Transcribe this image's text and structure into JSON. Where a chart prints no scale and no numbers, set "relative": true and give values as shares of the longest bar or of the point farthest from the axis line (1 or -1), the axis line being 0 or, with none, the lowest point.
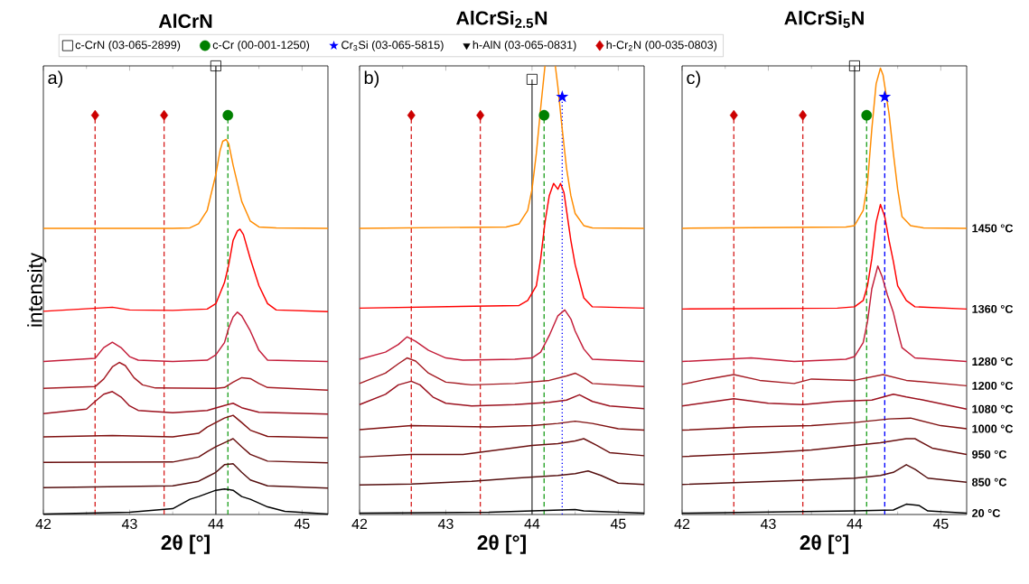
{
  "chart_data": [
    {
      "type": "line",
      "title": "AlCrN",
      "xlabel": "2θ [°]",
      "ylabel": "intensity",
      "annotations": [
        "a)"
      ],
      "relative": true,
      "xlim": [
        42,
        45.3
      ],
      "xticks": [
        42,
        43,
        44,
        45
      ],
      "legend": "top",
      "ref_lines": [
        {
          "axis": "x",
          "value": 42.6,
          "color": "#d62020",
          "line_style": "dashed"
        },
        {
          "axis": "x",
          "value": 43.4,
          "color": "#d62020",
          "line_style": "dashed"
        },
        {
          "axis": "x",
          "value": 44.0,
          "color": "#404040",
          "line_style": "solid"
        },
        {
          "axis": "x",
          "value": 44.14,
          "color": "#20a020",
          "line_style": "dashed"
        }
      ],
      "series": [
        {
          "color": "#ff8c00",
          "x": [
            42,
            43.5,
            43.7,
            43.8,
            43.9,
            44.0,
            44.05,
            44.08,
            44.12,
            44.15,
            44.2,
            44.3,
            44.4,
            44.5,
            44.7,
            45.3
          ],
          "values": [
            0.638,
            0.638,
            0.639,
            0.648,
            0.678,
            0.758,
            0.812,
            0.832,
            0.836,
            0.826,
            0.779,
            0.698,
            0.654,
            0.641,
            0.639,
            0.638
          ]
        },
        {
          "color": "#ff0000",
          "x": [
            42,
            42.8,
            43.0,
            43.5,
            43.9,
            44.0,
            44.1,
            44.15,
            44.2,
            44.25,
            44.28,
            44.32,
            44.4,
            44.5,
            44.6,
            44.7,
            45.3
          ],
          "values": [
            0.453,
            0.462,
            0.456,
            0.455,
            0.458,
            0.47,
            0.517,
            0.557,
            0.611,
            0.632,
            0.636,
            0.624,
            0.57,
            0.51,
            0.47,
            0.456,
            0.452
          ]
        },
        {
          "color": "#c41e3a",
          "x": [
            42,
            42.6,
            42.7,
            42.8,
            42.9,
            43.0,
            43.1,
            43.5,
            43.9,
            44.0,
            44.1,
            44.15,
            44.2,
            44.25,
            44.3,
            44.4,
            44.5,
            44.6,
            45.3
          ],
          "values": [
            0.341,
            0.348,
            0.372,
            0.384,
            0.372,
            0.352,
            0.344,
            0.341,
            0.344,
            0.356,
            0.383,
            0.416,
            0.44,
            0.451,
            0.443,
            0.409,
            0.366,
            0.344,
            0.341
          ]
        },
        {
          "color": "#a51c24",
          "x": [
            42,
            42.6,
            42.7,
            42.8,
            42.88,
            42.95,
            43.05,
            43.15,
            43.3,
            44.0,
            44.1,
            44.2,
            44.3,
            44.4,
            44.5,
            44.6,
            45.3
          ],
          "values": [
            0.281,
            0.285,
            0.302,
            0.329,
            0.339,
            0.332,
            0.305,
            0.289,
            0.282,
            0.281,
            0.283,
            0.295,
            0.305,
            0.303,
            0.292,
            0.283,
            0.277
          ]
        },
        {
          "color": "#9b111e",
          "x": [
            42,
            42.5,
            42.6,
            42.7,
            42.8,
            42.9,
            43.0,
            43.1,
            43.5,
            43.9,
            44.1,
            44.2,
            44.3,
            44.5,
            45.3
          ],
          "values": [
            0.225,
            0.235,
            0.252,
            0.268,
            0.274,
            0.262,
            0.242,
            0.232,
            0.227,
            0.232,
            0.243,
            0.248,
            0.238,
            0.228,
            0.224
          ]
        },
        {
          "color": "#7f1010",
          "x": [
            42,
            42.8,
            43.5,
            43.8,
            43.9,
            44.0,
            44.1,
            44.2,
            44.3,
            44.4,
            44.6,
            45.3
          ],
          "values": [
            0.173,
            0.176,
            0.173,
            0.181,
            0.195,
            0.205,
            0.215,
            0.221,
            0.205,
            0.188,
            0.174,
            0.171
          ]
        },
        {
          "color": "#6a1010",
          "x": [
            42,
            43.5,
            43.8,
            43.9,
            44.0,
            44.1,
            44.2,
            44.3,
            44.4,
            44.6,
            45.3
          ],
          "values": [
            0.116,
            0.117,
            0.128,
            0.14,
            0.151,
            0.16,
            0.169,
            0.151,
            0.134,
            0.119,
            0.115
          ]
        },
        {
          "color": "#551010",
          "x": [
            42,
            43.5,
            43.8,
            43.9,
            44.0,
            44.1,
            44.2,
            44.3,
            44.4,
            44.6,
            45.3
          ],
          "values": [
            0.06,
            0.064,
            0.074,
            0.084,
            0.094,
            0.111,
            0.113,
            0.094,
            0.077,
            0.064,
            0.059
          ]
        },
        {
          "color": "#000000",
          "x": [
            42,
            43.0,
            43.5,
            43.7,
            43.8,
            43.9,
            44.0,
            44.1,
            44.2,
            44.3,
            44.4,
            44.6,
            44.8,
            45.3
          ],
          "values": [
            0.001,
            0.005,
            0.013,
            0.034,
            0.04,
            0.047,
            0.054,
            0.057,
            0.054,
            0.04,
            0.034,
            0.017,
            0.007,
            0.001
          ]
        },
        {
          "type": "scatter",
          "name": "c-CrN (03-065-2899)",
          "marker": "square",
          "color": "#000000",
          "x": [
            44.0
          ],
          "values": [
            1.0
          ]
        },
        {
          "type": "scatter",
          "name": "c-Cr (00-001-1250)",
          "marker": "circle",
          "color": "#008000",
          "x": [
            44.14
          ],
          "values": [
            0.89
          ]
        },
        {
          "type": "scatter",
          "name": "Cr$_{3}$Si (03-065-5815)",
          "marker": "star",
          "color": "#0000ff"
        },
        {
          "type": "scatter",
          "name": "h-AlN (03-065-0831)",
          "marker": "triangle",
          "color": "#000000"
        },
        {
          "type": "scatter",
          "name": "h-Cr$_{2}$N (00-035-0803)",
          "marker": "diamond",
          "color": "#cc0000",
          "x": [
            42.6,
            43.4
          ],
          "values": [
            0.89,
            0.89
          ]
        }
      ]
    },
    {
      "type": "line",
      "title": "AlCrSi$_{2.5}$N",
      "xlabel": "2θ [°]",
      "annotations": [
        "b)"
      ],
      "relative": true,
      "xlim": [
        42,
        45.3
      ],
      "xticks": [
        42,
        43,
        44,
        45
      ],
      "ref_lines": [
        {
          "axis": "x",
          "value": 42.6,
          "color": "#d62020",
          "line_style": "dashed"
        },
        {
          "axis": "x",
          "value": 43.4,
          "color": "#d62020",
          "line_style": "dashed"
        },
        {
          "axis": "x",
          "value": 44.0,
          "color": "#404040",
          "line_style": "solid"
        },
        {
          "axis": "x",
          "value": 44.14,
          "color": "#20a020",
          "line_style": "dashed"
        },
        {
          "axis": "x",
          "value": 44.35,
          "color": "#0000ff",
          "line_style": "dotted"
        }
      ],
      "series": [
        {
          "color": "#ff8c00",
          "x": [
            42,
            43.7,
            43.85,
            43.95,
            44.0,
            44.05,
            44.1,
            44.15,
            44.2,
            44.27,
            44.3,
            44.35,
            44.4,
            44.45,
            44.5,
            44.6,
            44.7,
            45.3
          ],
          "values": [
            0.638,
            0.641,
            0.648,
            0.678,
            0.725,
            0.805,
            0.906,
            1.0,
            null,
            1.0,
            0.953,
            0.859,
            0.772,
            0.711,
            0.671,
            0.644,
            0.639,
            0.638
          ]
        },
        {
          "color": "#ff0000",
          "x": [
            42,
            43.85,
            43.95,
            44.05,
            44.1,
            44.15,
            44.2,
            44.25,
            44.3,
            44.33,
            44.37,
            44.4,
            44.45,
            44.5,
            44.6,
            44.7,
            45.3
          ],
          "values": [
            0.46,
            0.466,
            0.477,
            0.51,
            0.57,
            0.651,
            0.711,
            0.738,
            0.725,
            0.738,
            0.718,
            0.678,
            0.611,
            0.557,
            0.483,
            0.463,
            0.46
          ]
        },
        {
          "color": "#c41e3a",
          "x": [
            42,
            42.3,
            42.45,
            42.55,
            42.65,
            42.8,
            43.0,
            43.2,
            43.8,
            44.0,
            44.1,
            44.2,
            44.3,
            44.38,
            44.45,
            44.5,
            44.6,
            44.7,
            45.3
          ],
          "values": [
            0.346,
            0.362,
            0.379,
            0.396,
            0.386,
            0.366,
            0.349,
            0.344,
            0.346,
            0.349,
            0.362,
            0.399,
            0.443,
            0.456,
            0.436,
            0.409,
            0.369,
            0.346,
            0.341
          ]
        },
        {
          "color": "#a51c24",
          "x": [
            42,
            42.3,
            42.45,
            42.55,
            42.65,
            42.8,
            43.0,
            43.3,
            43.8,
            44.2,
            44.4,
            44.5,
            44.6,
            44.7,
            45.3
          ],
          "values": [
            0.292,
            0.315,
            0.336,
            0.349,
            0.342,
            0.315,
            0.295,
            0.289,
            0.292,
            0.299,
            0.309,
            0.315,
            0.305,
            0.292,
            0.285
          ]
        },
        {
          "color": "#9b111e",
          "x": [
            42,
            42.3,
            42.45,
            42.6,
            42.7,
            42.85,
            43.0,
            43.3,
            43.8,
            44.2,
            44.4,
            44.55,
            44.7,
            44.9,
            45.3
          ],
          "values": [
            0.245,
            0.268,
            0.289,
            0.297,
            0.289,
            0.262,
            0.248,
            0.242,
            0.245,
            0.25,
            0.255,
            0.267,
            0.252,
            0.242,
            0.236
          ]
        },
        {
          "color": "#7f1010",
          "x": [
            42,
            42.6,
            43.5,
            44.0,
            44.3,
            44.5,
            44.7,
            45.0,
            45.3
          ],
          "values": [
            0.189,
            0.198,
            0.195,
            0.198,
            0.203,
            0.208,
            0.203,
            0.191,
            0.188
          ]
        },
        {
          "color": "#6a1010",
          "x": [
            42,
            42.6,
            43.2,
            43.6,
            44.0,
            44.3,
            44.5,
            44.6,
            44.75,
            44.9,
            45.3
          ],
          "values": [
            0.128,
            0.134,
            0.134,
            0.144,
            0.154,
            0.158,
            0.164,
            0.169,
            0.154,
            0.138,
            0.131
          ]
        },
        {
          "color": "#551010",
          "x": [
            42,
            42.6,
            43.3,
            43.8,
            44.3,
            44.5,
            44.65,
            44.8,
            45.0,
            45.3
          ],
          "values": [
            0.066,
            0.068,
            0.074,
            0.081,
            0.087,
            0.091,
            0.097,
            0.087,
            0.07,
            0.067
          ]
        },
        {
          "color": "#000000",
          "x": [
            42,
            43.5,
            44.5,
            44.6,
            45.3
          ],
          "values": [
            0.003,
            0.005,
            0.011,
            0.008,
            0.003
          ]
        },
        {
          "type": "scatter",
          "marker": "square",
          "color": "#000000",
          "x": [
            44.0
          ],
          "values": [
            0.97
          ]
        },
        {
          "type": "scatter",
          "marker": "circle",
          "color": "#008000",
          "x": [
            44.14
          ],
          "values": [
            0.89
          ]
        },
        {
          "type": "scatter",
          "marker": "star",
          "color": "#0000ff",
          "x": [
            44.35
          ],
          "values": [
            0.931
          ]
        },
        {
          "type": "scatter",
          "marker": "diamond",
          "color": "#cc0000",
          "x": [
            42.6,
            43.4
          ],
          "values": [
            0.89,
            0.89
          ]
        }
      ]
    },
    {
      "type": "line",
      "title": "AlCrSi$_{5}$N",
      "xlabel": "2θ [°]",
      "annotations": [
        "c)"
      ],
      "relative": true,
      "xlim": [
        42,
        45.3
      ],
      "xticks": [
        42,
        43,
        44,
        45
      ],
      "ref_lines": [
        {
          "axis": "x",
          "value": 42.6,
          "color": "#d62020",
          "line_style": "dashed"
        },
        {
          "axis": "x",
          "value": 43.4,
          "color": "#d62020",
          "line_style": "dashed"
        },
        {
          "axis": "x",
          "value": 44.0,
          "color": "#404040",
          "line_style": "solid"
        },
        {
          "axis": "x",
          "value": 44.14,
          "color": "#20a020",
          "line_style": "dashed"
        },
        {
          "axis": "x",
          "value": 44.35,
          "color": "#0000ff",
          "line_style": "dashed"
        }
      ],
      "series": [
        {
          "name": "1450 °C",
          "color": "#ff8c00",
          "x": [
            42,
            43.9,
            44.0,
            44.1,
            44.15,
            44.2,
            44.25,
            44.3,
            44.33,
            44.4,
            44.45,
            44.5,
            44.55,
            44.65,
            44.8,
            45.3
          ],
          "values": [
            0.638,
            0.641,
            0.644,
            0.678,
            0.738,
            0.859,
            0.96,
            0.995,
            0.98,
            0.893,
            0.805,
            0.725,
            0.664,
            0.644,
            0.639,
            0.638
          ]
        },
        {
          "name": "1360 °C",
          "color": "#ff0000",
          "x": [
            42,
            43.8,
            44.0,
            44.1,
            44.15,
            44.2,
            44.25,
            44.3,
            44.35,
            44.4,
            44.45,
            44.5,
            44.6,
            44.7,
            45.3
          ],
          "values": [
            0.458,
            0.46,
            0.463,
            0.477,
            0.51,
            0.57,
            0.651,
            0.691,
            0.664,
            0.611,
            0.564,
            0.51,
            0.477,
            0.463,
            0.458
          ]
        },
        {
          "name": "1280 °C",
          "color": "#c41e3a",
          "x": [
            42,
            42.8,
            43.3,
            43.9,
            44.0,
            44.1,
            44.15,
            44.2,
            44.27,
            44.32,
            44.38,
            44.45,
            44.5,
            44.55,
            44.7,
            45.3
          ],
          "values": [
            0.341,
            0.349,
            0.341,
            0.346,
            0.352,
            0.383,
            0.43,
            0.503,
            0.554,
            0.53,
            0.49,
            0.45,
            0.409,
            0.372,
            0.349,
            0.341
          ]
        },
        {
          "name": "1200 °C",
          "color": "#a51c24",
          "x": [
            42,
            42.3,
            42.6,
            42.9,
            43.3,
            43.5,
            44.0,
            44.33,
            44.6,
            45.3
          ],
          "values": [
            0.29,
            0.302,
            0.312,
            0.299,
            0.292,
            0.302,
            0.299,
            0.312,
            0.299,
            0.287
          ]
        },
        {
          "name": "1080 °C",
          "color": "#9b111e",
          "x": [
            42,
            42.6,
            43.0,
            43.4,
            43.8,
            44.2,
            44.45,
            44.6,
            44.8,
            45.3
          ],
          "values": [
            0.242,
            0.258,
            0.248,
            0.245,
            0.252,
            0.255,
            0.268,
            0.262,
            0.255,
            0.235
          ]
        },
        {
          "name": "1000 °C",
          "color": "#7f1010",
          "x": [
            42,
            42.8,
            43.5,
            44.0,
            44.4,
            44.65,
            45.0,
            45.3
          ],
          "values": [
            0.188,
            0.195,
            0.198,
            0.205,
            0.213,
            0.215,
            0.198,
            0.191
          ]
        },
        {
          "name": "950 °C",
          "color": "#6a1010",
          "x": [
            42,
            43.0,
            43.5,
            44.0,
            44.3,
            44.6,
            44.7,
            44.9,
            45.3
          ],
          "values": [
            0.129,
            0.138,
            0.144,
            0.154,
            0.16,
            0.169,
            0.169,
            0.148,
            0.134
          ]
        },
        {
          "name": "850 °C",
          "color": "#551010",
          "x": [
            42,
            43.5,
            44.0,
            44.3,
            44.45,
            44.6,
            44.7,
            44.85,
            45.3
          ],
          "values": [
            0.067,
            0.077,
            0.081,
            0.087,
            0.094,
            0.111,
            0.101,
            0.081,
            0.072
          ]
        },
        {
          "name": "20 °C",
          "color": "#000000",
          "x": [
            42,
            44.0,
            44.45,
            44.6,
            44.75,
            44.85,
            45.3
          ],
          "values": [
            0.003,
            0.008,
            0.01,
            0.023,
            0.02,
            0.008,
            0.003
          ]
        },
        {
          "type": "scatter",
          "marker": "square",
          "color": "#000000",
          "x": [
            44.0
          ],
          "values": [
            1.0
          ]
        },
        {
          "type": "scatter",
          "marker": "circle",
          "color": "#008000",
          "x": [
            44.14
          ],
          "values": [
            0.89
          ]
        },
        {
          "type": "scatter",
          "marker": "star",
          "color": "#0000ff",
          "x": [
            44.35
          ],
          "values": [
            0.931
          ]
        },
        {
          "type": "scatter",
          "marker": "diamond",
          "color": "#cc0000",
          "x": [
            42.6,
            43.4
          ],
          "values": [
            0.89,
            0.89
          ]
        }
      ]
    }
  ]
}
